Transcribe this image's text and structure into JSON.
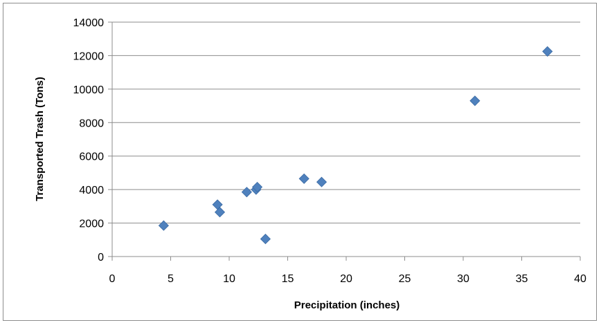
{
  "chart_data": {
    "type": "scatter",
    "title": "",
    "xlabel": "Precipitation (inches)",
    "ylabel": "Transported Trash (Tons)",
    "xlim": [
      0,
      40
    ],
    "ylim": [
      0,
      14000
    ],
    "xticks": [
      0,
      5,
      10,
      15,
      20,
      25,
      30,
      35,
      40
    ],
    "yticks": [
      0,
      2000,
      4000,
      6000,
      8000,
      10000,
      12000,
      14000
    ],
    "grid": "horizontal",
    "legend": "none",
    "marker": "diamond",
    "marker_color": "#4F81BD",
    "points": [
      {
        "x": 4.4,
        "y": 1850
      },
      {
        "x": 9.0,
        "y": 3100
      },
      {
        "x": 9.2,
        "y": 2650
      },
      {
        "x": 11.5,
        "y": 3850
      },
      {
        "x": 12.3,
        "y": 4000
      },
      {
        "x": 12.4,
        "y": 4150
      },
      {
        "x": 13.1,
        "y": 1050
      },
      {
        "x": 16.4,
        "y": 4650
      },
      {
        "x": 17.9,
        "y": 4450
      },
      {
        "x": 31.0,
        "y": 9300
      },
      {
        "x": 37.2,
        "y": 12250
      }
    ]
  }
}
